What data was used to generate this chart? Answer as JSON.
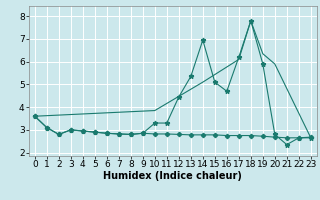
{
  "title": "",
  "xlabel": "Humidex (Indice chaleur)",
  "background_color": "#cce8ec",
  "grid_color": "#ffffff",
  "line_color": "#1a7a6e",
  "xlim": [
    -0.5,
    23.5
  ],
  "ylim": [
    1.85,
    8.45
  ],
  "yticks": [
    2,
    3,
    4,
    5,
    6,
    7,
    8
  ],
  "xticks": [
    0,
    1,
    2,
    3,
    4,
    5,
    6,
    7,
    8,
    9,
    10,
    11,
    12,
    13,
    14,
    15,
    16,
    17,
    18,
    19,
    20,
    21,
    22,
    23
  ],
  "series_flat_x": [
    0,
    1,
    2,
    3,
    4,
    5,
    6,
    7,
    8,
    9,
    10,
    11,
    12,
    13,
    14,
    15,
    16,
    17,
    18,
    19,
    20,
    21,
    22,
    23
  ],
  "series_flat_y": [
    3.6,
    3.1,
    2.8,
    3.0,
    2.95,
    2.9,
    2.85,
    2.82,
    2.8,
    2.85,
    2.82,
    2.82,
    2.8,
    2.78,
    2.78,
    2.78,
    2.75,
    2.75,
    2.75,
    2.72,
    2.68,
    2.65,
    2.65,
    2.68
  ],
  "series_zigzag_x": [
    0,
    1,
    2,
    3,
    4,
    5,
    6,
    7,
    8,
    9,
    10,
    11,
    12,
    13,
    14,
    15,
    16,
    17,
    18,
    19,
    20,
    21,
    22,
    23
  ],
  "series_zigzag_y": [
    3.6,
    3.1,
    2.8,
    3.0,
    2.95,
    2.9,
    2.85,
    2.82,
    2.8,
    2.85,
    3.3,
    3.3,
    4.45,
    5.35,
    6.95,
    5.1,
    4.7,
    6.2,
    7.8,
    5.9,
    2.8,
    2.35,
    2.65,
    2.65
  ],
  "series_trend_x": [
    0,
    10,
    14,
    17,
    18,
    19,
    20,
    23
  ],
  "series_trend_y": [
    3.6,
    3.85,
    5.1,
    6.1,
    7.8,
    6.35,
    5.9,
    2.65
  ],
  "fontsize_xlabel": 7,
  "fontsize_ticks": 6.5
}
